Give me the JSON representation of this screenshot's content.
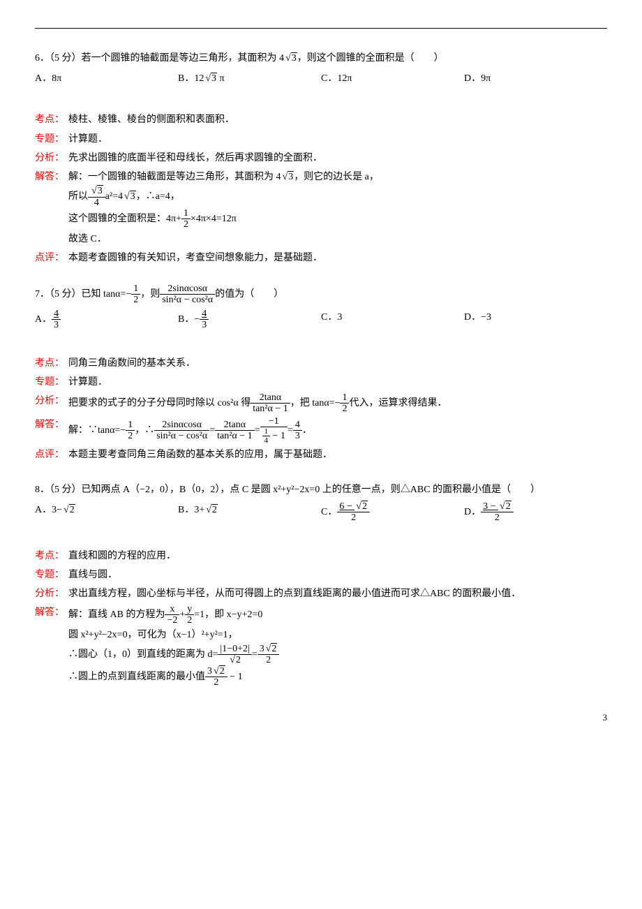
{
  "q6": {
    "stem_a": "6．（5 分）若一个圆锥的轴截面是等边三角形，其面积为 4",
    "stem_b": "，则这个圆锥的全面积是（　　）",
    "optA": "A．8π",
    "optB_a": "B．12",
    "optB_b": " π",
    "optC": "C．12π",
    "optD": "D．9π",
    "kaodian_lbl": "考点：",
    "kaodian": "棱柱、棱锥、棱台的侧面积和表面积．",
    "zhuanti_lbl": "专题：",
    "zhuanti": "计算题．",
    "fenxi_lbl": "分析：",
    "fenxi": "先求出圆锥的底面半径和母线长，然后再求圆锥的全面积．",
    "jieda_lbl": "解答：",
    "jieda1_a": "解：一个圆锥的轴截面是等边三角形，其面积为 4",
    "jieda1_b": "，则它的边长是 a，",
    "jieda2_a": "所以",
    "jieda2_b": "a²=4",
    "jieda2_c": "，∴a=4，",
    "jieda3_a": "这个圆锥的全面积是：4π+",
    "jieda3_b": "×4π×4=12π",
    "jieda4": "故选 C．",
    "dianping_lbl": "点评：",
    "dianping": "本题考查圆锥的有关知识，考查空间想象能力，是基础题．"
  },
  "q7": {
    "stem_a": "7．（5 分）已知 tanα=−",
    "stem_b": "，则",
    "stem_c": "的值为（　　）",
    "frac_top": "2sinαcosα",
    "frac_bot": "sin²α − cos²α",
    "optA_a": "A．",
    "optB_a": "B．−",
    "optC": "C．3",
    "optD": "D．−3",
    "kaodian_lbl": "考点：",
    "kaodian": "同角三角函数间的基本关系．",
    "zhuanti_lbl": "专题：",
    "zhuanti": "计算题．",
    "fenxi_lbl": "分析：",
    "fenxi_a": "把要求的式子的分子分母同时除以 cos²α 得",
    "fenxi_b": "，把 tanα=−",
    "fenxi_c": "代入，运算求得结果．",
    "f2_top": "2tanα",
    "f2_bot": "tan²α − 1",
    "jieda_lbl": "解答：",
    "jieda_a": "解：∵tanα=−",
    "jieda_b": "，∴",
    "jieda_c": "=",
    "jieda_d": "=",
    "jieda_e": "=",
    "jieda_f": "．",
    "dianping_lbl": "点评：",
    "dianping": "本题主要考查同角三角函数的基本关系的应用，属于基础题．"
  },
  "q8": {
    "stem": "8．（5 分）已知两点 A（−2，0），B（0，2），点 C 是圆 x²+y²−2x=0 上的任意一点，则△ABC 的面积最小值是（　　）",
    "optA_a": "A．3−",
    "optB_a": "B．3+",
    "optC_a": "C．",
    "optC_top": "6 − ",
    "optD_a": "D．",
    "optD_top": "3 − ",
    "kaodian_lbl": "考点：",
    "kaodian": "直线和圆的方程的应用．",
    "zhuanti_lbl": "专题：",
    "zhuanti": "直线与圆．",
    "fenxi_lbl": "分析：",
    "fenxi": "求出直线方程，圆心坐标与半径，从而可得圆上的点到直线距离的最小值进而可求△ABC 的面积最小值．",
    "jieda_lbl": "解答：",
    "jieda1_a": "解：直线 AB 的方程为",
    "jieda1_b": "=1，即 x−y+2=0",
    "jieda1_top_a": "x",
    "jieda1_bot_a": "−2",
    "jieda1_top_b": "y",
    "jieda1_bot_b": "2",
    "jieda2": "圆 x²+y²−2x=0，可化为（x−1）²+y²=1，",
    "jieda3_a": "∴圆心（1，0）到直线的距离为 d=",
    "jieda3_top": "|1−0+2|",
    "jieda3_b": "=",
    "jieda3_top2a": "3",
    "jieda4_a": "∴圆上的点到直线距离的最小值",
    "jieda4_b": " − 1"
  },
  "nums": {
    "n1": "1",
    "n2": "2",
    "n3": "3",
    "n4": "4",
    "sqrt2": "2",
    "sqrt3": "3",
    "neg1": "−1",
    "quarter_top": "1",
    "quarter_bot": "4"
  },
  "page": "3"
}
